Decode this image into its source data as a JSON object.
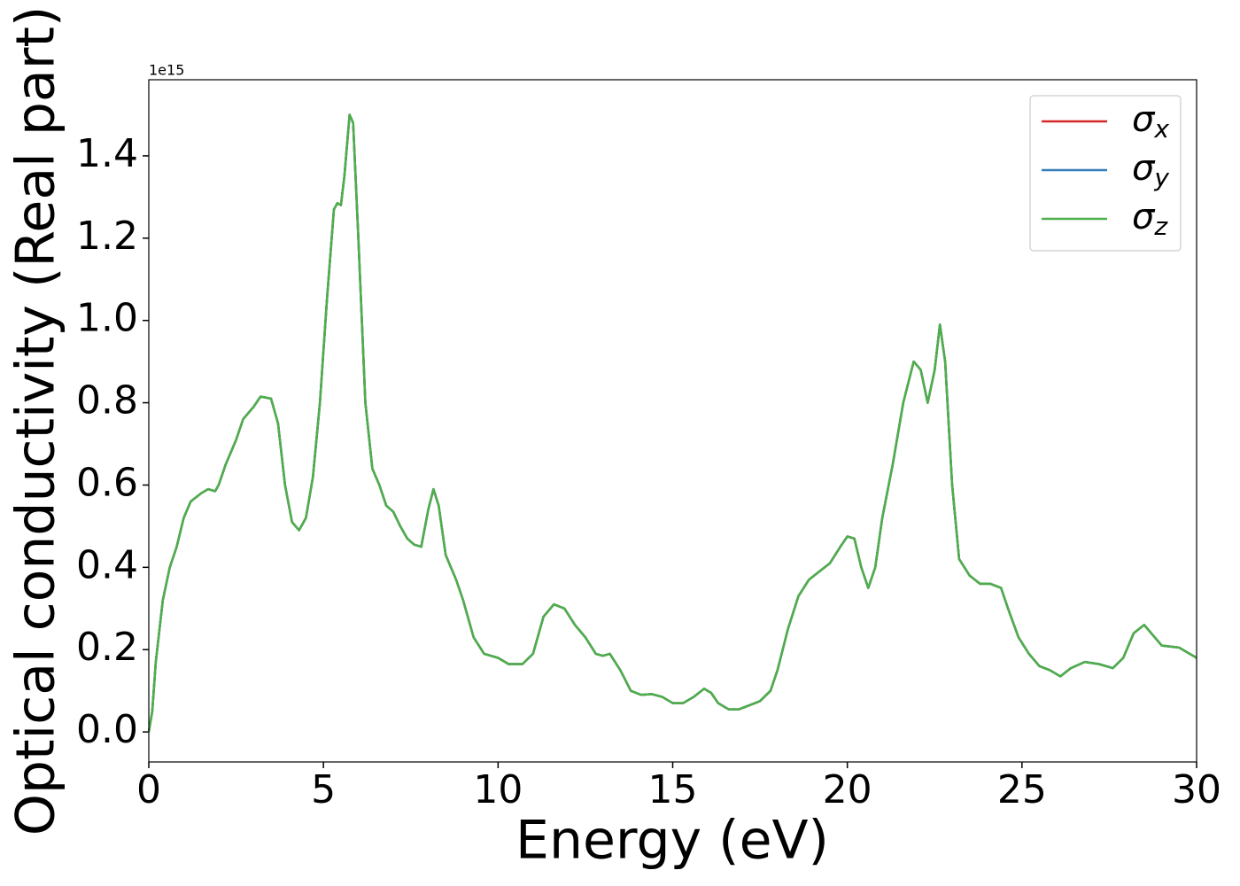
{
  "chart_data": {
    "type": "line",
    "xlabel": "Energy (eV)",
    "ylabel": "Optical conductivity (Real part)",
    "offset_text": "1e15",
    "xlim": [
      0,
      30
    ],
    "xticks": [
      0,
      5,
      10,
      15,
      20,
      25,
      30
    ],
    "ylim": [
      -0.073,
      1.585
    ],
    "yticks": [
      {
        "value": 0,
        "label": "0.0"
      },
      {
        "value": 0.2,
        "label": "0.2"
      },
      {
        "value": 0.4,
        "label": "0.4"
      },
      {
        "value": 0.6,
        "label": "0.6"
      },
      {
        "value": 0.8,
        "label": "0.8"
      },
      {
        "value": 1.0,
        "label": "1.0"
      },
      {
        "value": 1.2,
        "label": "1.2"
      },
      {
        "value": 1.4,
        "label": "1.4"
      }
    ],
    "grid": false,
    "legend": "upper right",
    "x": [
      0,
      0.1,
      0.2,
      0.4,
      0.6,
      0.8,
      1.0,
      1.2,
      1.5,
      1.7,
      1.9,
      2.0,
      2.2,
      2.5,
      2.7,
      3.0,
      3.2,
      3.5,
      3.7,
      3.9,
      4.1,
      4.3,
      4.5,
      4.7,
      4.9,
      5.1,
      5.3,
      5.4,
      5.5,
      5.6,
      5.75,
      5.85,
      6.0,
      6.2,
      6.4,
      6.6,
      6.8,
      7.0,
      7.2,
      7.4,
      7.6,
      7.8,
      8.0,
      8.15,
      8.3,
      8.5,
      8.8,
      9.0,
      9.3,
      9.6,
      10.0,
      10.3,
      10.7,
      11.0,
      11.3,
      11.6,
      11.9,
      12.2,
      12.5,
      12.8,
      13.0,
      13.2,
      13.5,
      13.8,
      14.1,
      14.4,
      14.7,
      15.0,
      15.3,
      15.6,
      15.9,
      16.1,
      16.3,
      16.6,
      16.9,
      17.2,
      17.5,
      17.8,
      18.0,
      18.3,
      18.6,
      18.9,
      19.2,
      19.5,
      19.8,
      20.0,
      20.2,
      20.4,
      20.6,
      20.8,
      21.0,
      21.3,
      21.6,
      21.9,
      22.1,
      22.3,
      22.5,
      22.65,
      22.8,
      23.0,
      23.2,
      23.5,
      23.8,
      24.1,
      24.4,
      24.6,
      24.9,
      25.2,
      25.5,
      25.8,
      26.1,
      26.4,
      26.8,
      27.2,
      27.6,
      27.9,
      28.2,
      28.5,
      28.8,
      29.0,
      29.5,
      30
    ],
    "series": [
      {
        "name": "σx",
        "color": "#d62728",
        "values": [
          0.0,
          0.05,
          0.17,
          0.32,
          0.4,
          0.45,
          0.52,
          0.56,
          0.58,
          0.59,
          0.585,
          0.6,
          0.65,
          0.71,
          0.76,
          0.79,
          0.815,
          0.81,
          0.75,
          0.6,
          0.51,
          0.49,
          0.52,
          0.62,
          0.8,
          1.05,
          1.27,
          1.285,
          1.28,
          1.35,
          1.5,
          1.48,
          1.2,
          0.8,
          0.64,
          0.6,
          0.55,
          0.535,
          0.5,
          0.47,
          0.455,
          0.45,
          0.54,
          0.59,
          0.55,
          0.43,
          0.37,
          0.32,
          0.23,
          0.19,
          0.18,
          0.165,
          0.165,
          0.19,
          0.28,
          0.31,
          0.3,
          0.26,
          0.23,
          0.19,
          0.185,
          0.19,
          0.15,
          0.1,
          0.09,
          0.092,
          0.085,
          0.07,
          0.07,
          0.085,
          0.105,
          0.095,
          0.07,
          0.055,
          0.055,
          0.065,
          0.075,
          0.1,
          0.15,
          0.25,
          0.33,
          0.37,
          0.39,
          0.41,
          0.45,
          0.475,
          0.47,
          0.4,
          0.35,
          0.4,
          0.52,
          0.65,
          0.8,
          0.9,
          0.88,
          0.8,
          0.88,
          0.99,
          0.9,
          0.6,
          0.42,
          0.38,
          0.36,
          0.36,
          0.35,
          0.3,
          0.23,
          0.19,
          0.16,
          0.15,
          0.135,
          0.155,
          0.17,
          0.165,
          0.155,
          0.18,
          0.24,
          0.26,
          0.23,
          0.21,
          0.205,
          0.18
        ]
      },
      {
        "name": "σy",
        "color": "#377eb8",
        "values": [
          0.0,
          0.05,
          0.17,
          0.32,
          0.4,
          0.45,
          0.52,
          0.56,
          0.58,
          0.59,
          0.585,
          0.6,
          0.65,
          0.71,
          0.76,
          0.79,
          0.815,
          0.81,
          0.75,
          0.6,
          0.51,
          0.49,
          0.52,
          0.62,
          0.8,
          1.05,
          1.27,
          1.285,
          1.28,
          1.35,
          1.5,
          1.48,
          1.2,
          0.8,
          0.64,
          0.6,
          0.55,
          0.535,
          0.5,
          0.47,
          0.455,
          0.45,
          0.54,
          0.59,
          0.55,
          0.43,
          0.37,
          0.32,
          0.23,
          0.19,
          0.18,
          0.165,
          0.165,
          0.19,
          0.28,
          0.31,
          0.3,
          0.26,
          0.23,
          0.19,
          0.185,
          0.19,
          0.15,
          0.1,
          0.09,
          0.092,
          0.085,
          0.07,
          0.07,
          0.085,
          0.105,
          0.095,
          0.07,
          0.055,
          0.055,
          0.065,
          0.075,
          0.1,
          0.15,
          0.25,
          0.33,
          0.37,
          0.39,
          0.41,
          0.45,
          0.475,
          0.47,
          0.4,
          0.35,
          0.4,
          0.52,
          0.65,
          0.8,
          0.9,
          0.88,
          0.8,
          0.88,
          0.99,
          0.9,
          0.6,
          0.42,
          0.38,
          0.36,
          0.36,
          0.35,
          0.3,
          0.23,
          0.19,
          0.16,
          0.15,
          0.135,
          0.155,
          0.17,
          0.165,
          0.155,
          0.18,
          0.24,
          0.26,
          0.23,
          0.21,
          0.205,
          0.18
        ]
      },
      {
        "name": "σz",
        "color": "#4daf4a",
        "values": [
          0.0,
          0.05,
          0.17,
          0.32,
          0.4,
          0.45,
          0.52,
          0.56,
          0.58,
          0.59,
          0.585,
          0.6,
          0.65,
          0.71,
          0.76,
          0.79,
          0.815,
          0.81,
          0.75,
          0.6,
          0.51,
          0.49,
          0.52,
          0.62,
          0.8,
          1.05,
          1.27,
          1.285,
          1.28,
          1.35,
          1.5,
          1.48,
          1.2,
          0.8,
          0.64,
          0.6,
          0.55,
          0.535,
          0.5,
          0.47,
          0.455,
          0.45,
          0.54,
          0.59,
          0.55,
          0.43,
          0.37,
          0.32,
          0.23,
          0.19,
          0.18,
          0.165,
          0.165,
          0.19,
          0.28,
          0.31,
          0.3,
          0.26,
          0.23,
          0.19,
          0.185,
          0.19,
          0.15,
          0.1,
          0.09,
          0.092,
          0.085,
          0.07,
          0.07,
          0.085,
          0.105,
          0.095,
          0.07,
          0.055,
          0.055,
          0.065,
          0.075,
          0.1,
          0.15,
          0.25,
          0.33,
          0.37,
          0.39,
          0.41,
          0.45,
          0.475,
          0.47,
          0.4,
          0.35,
          0.4,
          0.52,
          0.65,
          0.8,
          0.9,
          0.88,
          0.8,
          0.88,
          0.99,
          0.9,
          0.6,
          0.42,
          0.38,
          0.36,
          0.36,
          0.35,
          0.3,
          0.23,
          0.19,
          0.16,
          0.15,
          0.135,
          0.155,
          0.17,
          0.165,
          0.155,
          0.18,
          0.24,
          0.26,
          0.23,
          0.21,
          0.205,
          0.18
        ]
      }
    ]
  }
}
